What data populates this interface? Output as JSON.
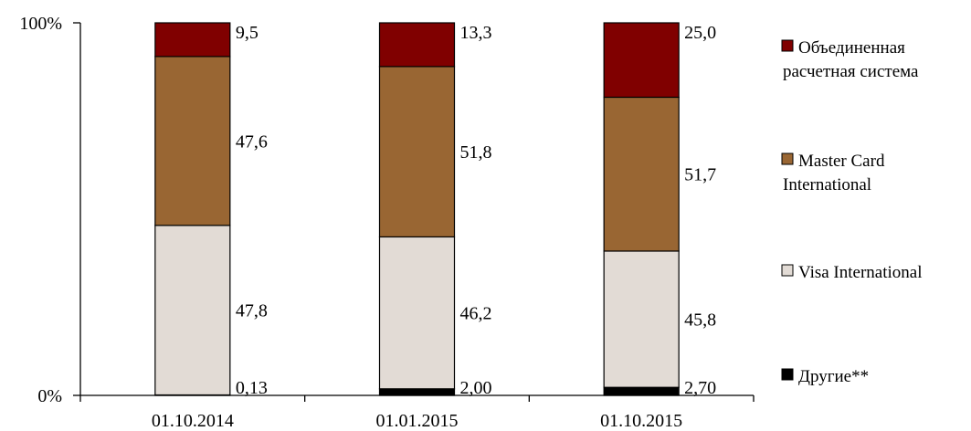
{
  "chart_data": {
    "type": "bar",
    "stacked": true,
    "normalized": true,
    "categories": [
      "01.10.2014",
      "01.01.2015",
      "01.10.2015"
    ],
    "series": [
      {
        "name": "Другие**",
        "values": [
          0.13,
          2.0,
          2.7
        ],
        "labels": [
          "0,13",
          "2,00",
          "2,70"
        ],
        "color": "#000000"
      },
      {
        "name": "Visa International",
        "values": [
          47.8,
          46.2,
          45.8
        ],
        "labels": [
          "47,8",
          "46,2",
          "45,8"
        ],
        "color": "#e2dbd5"
      },
      {
        "name": "Master Card International",
        "values": [
          47.6,
          51.8,
          51.7
        ],
        "labels": [
          "47,6",
          "51,8",
          "51,7"
        ],
        "color": "#996633"
      },
      {
        "name": "Объединенная расчетная система",
        "values": [
          9.5,
          13.3,
          25.0
        ],
        "labels": [
          "9,5",
          "13,3",
          "25,0"
        ],
        "color": "#800000"
      }
    ],
    "legend_lines": [
      [
        "Другие**"
      ],
      [
        "Visa International"
      ],
      [
        "Master Card",
        "International"
      ],
      [
        "Объединенная",
        "расчетная система"
      ]
    ],
    "y_ticks": [
      "0%",
      "100%"
    ],
    "ylim": [
      0,
      100
    ],
    "grid": false,
    "legend_position": "right",
    "title": "",
    "xlabel": "",
    "ylabel": ""
  }
}
